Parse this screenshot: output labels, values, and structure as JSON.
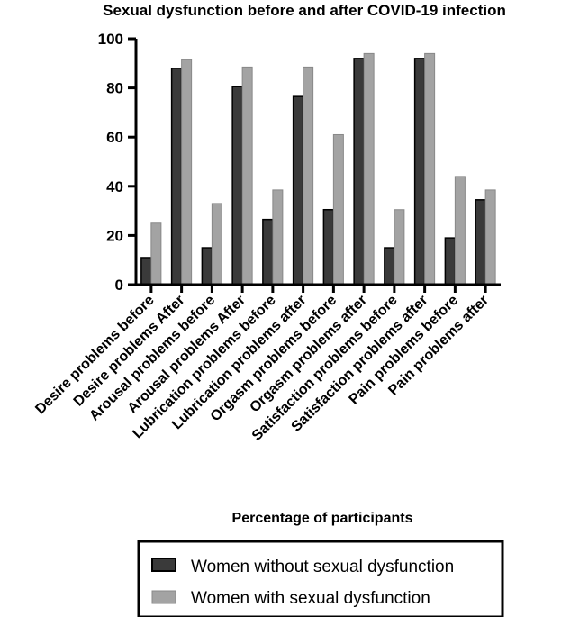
{
  "chart_data": {
    "type": "bar",
    "title": "Sexual dysfunction before and after COVID-19 infection",
    "xlabel": "Percentage of participants",
    "ylabel": "",
    "ylim": [
      0,
      100
    ],
    "yticks": [
      0,
      20,
      40,
      60,
      80,
      100
    ],
    "grid": false,
    "legend_position": "bottom",
    "categories": [
      "Desire problems before",
      "Desire problems After",
      "Arousal problems before",
      "Arousal problems After",
      "Lubrication problems before",
      "Lubrication problems after",
      "Orgasm problems before",
      "Orgasm problems after",
      "Satisfaction problems before",
      "Satisfaction problems after",
      "Pain problems before",
      "Pain problems after"
    ],
    "series": [
      {
        "name": "Women without sexual dysfunction",
        "color": "#3a3a3a",
        "values": [
          11,
          88,
          15,
          80.5,
          26.5,
          76.5,
          30.5,
          92,
          15,
          92,
          19,
          34.5
        ]
      },
      {
        "name": "Women with sexual dysfunction",
        "color": "#a3a3a3",
        "values": [
          25,
          91.5,
          33,
          88.5,
          38.5,
          88.5,
          61,
          94,
          30.5,
          94,
          44,
          38.5
        ]
      }
    ]
  }
}
